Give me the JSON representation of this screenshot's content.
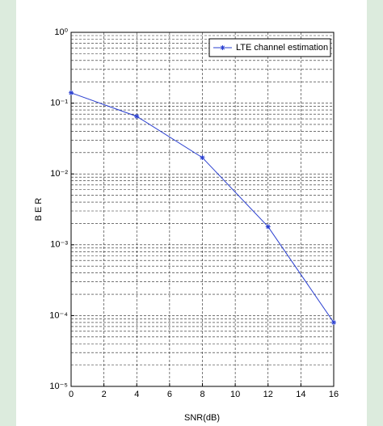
{
  "chart_data": {
    "type": "line",
    "xlabel": "SNR(dB)",
    "ylabel": "B E R",
    "x": [
      0,
      4,
      8,
      12,
      16
    ],
    "series": [
      {
        "name": "LTE channel estimation",
        "color": "#2a3fd0",
        "values": [
          0.14,
          0.065,
          0.017,
          0.0018,
          8e-05
        ]
      }
    ],
    "xlim": [
      0,
      16
    ],
    "xticks": [
      0,
      2,
      4,
      6,
      8,
      10,
      12,
      14,
      16
    ],
    "ylim": [
      1e-05,
      1
    ],
    "log_y": true,
    "yticks": [
      {
        "value": 1e-05,
        "label": "10⁻⁵"
      },
      {
        "value": 0.0001,
        "label": "10⁻⁴"
      },
      {
        "value": 0.001,
        "label": "10⁻³"
      },
      {
        "value": 0.01,
        "label": "10⁻²"
      },
      {
        "value": 0.1,
        "label": "10⁻¹"
      },
      {
        "value": 1,
        "label": "10⁰"
      }
    ],
    "grid": true,
    "minor_grid": true,
    "legend": "upper right"
  }
}
